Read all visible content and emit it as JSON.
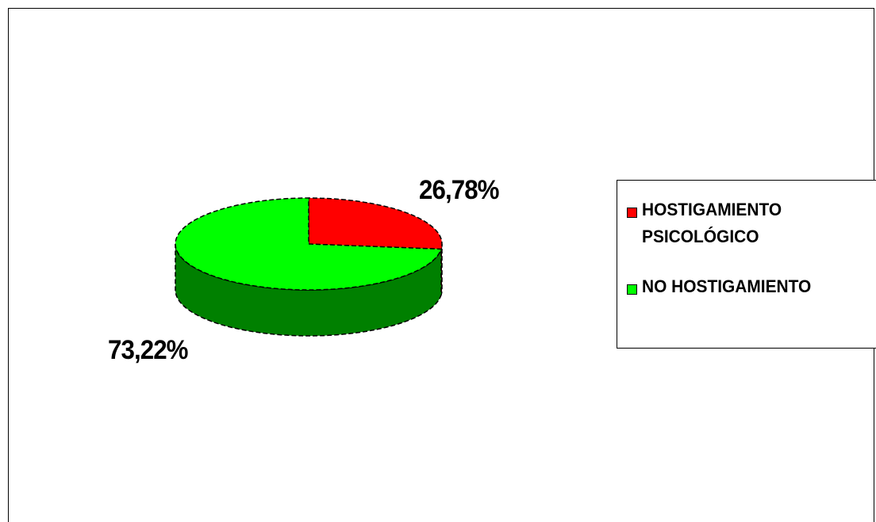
{
  "chart_data": {
    "type": "pie",
    "style": "3d",
    "slices": [
      {
        "label": "HOSTIGAMIENTO PSICOLÓGICO",
        "value": 26.78,
        "display": "26,78%",
        "color": "#ff0000",
        "side_color": "#b00000"
      },
      {
        "label": "NO HOSTIGAMIENTO",
        "value": 73.22,
        "display": "73,22%",
        "color": "#00ff00",
        "side_color": "#008000"
      }
    ],
    "legend": {
      "placement": "right",
      "entries": [
        {
          "label": "HOSTIGAMIENTO PSICOLÓGICO",
          "color": "#ff0000"
        },
        {
          "label": "NO HOSTIGAMIENTO",
          "color": "#00ff00"
        }
      ]
    }
  }
}
